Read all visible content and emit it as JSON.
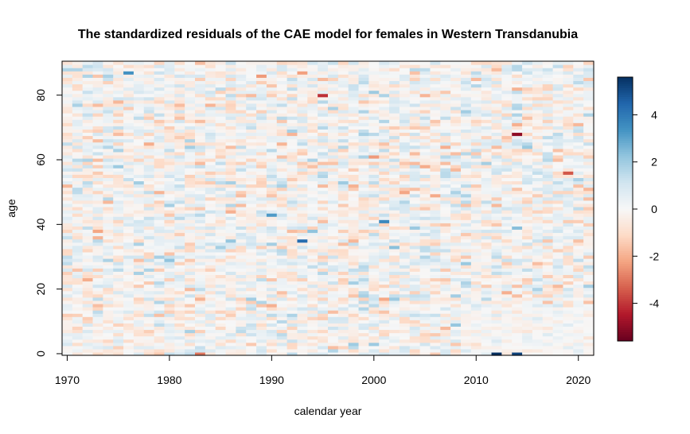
{
  "chart_data": {
    "type": "heatmap",
    "title": "The standardized residuals of the CAE model for females in Western Transdanubia",
    "xlabel": "calendar year",
    "ylabel": "age",
    "x_range": [
      1970,
      2021
    ],
    "y_range": [
      0,
      90
    ],
    "x_ticks": [
      "1970",
      "1980",
      "1990",
      "2000",
      "2010",
      "2020"
    ],
    "y_ticks": [
      "0",
      "20",
      "40",
      "60",
      "80"
    ],
    "colorbar": {
      "range": [
        -5.6,
        5.6
      ],
      "ticks": [
        "-4",
        "-2",
        "0",
        "2",
        "4"
      ],
      "palette": [
        "#67001f",
        "#b2182b",
        "#d6604d",
        "#f4a582",
        "#fddbc7",
        "#f7f7f7",
        "#d1e5f0",
        "#92c5de",
        "#4393c3",
        "#2166ac",
        "#053061"
      ]
    },
    "notable_cells": [
      {
        "year": 2012,
        "age": 0,
        "value": 5.6
      },
      {
        "year": 2014,
        "age": 0,
        "value": 5.2
      },
      {
        "year": 1993,
        "age": 35,
        "value": 4.3
      },
      {
        "year": 1995,
        "age": 80,
        "value": -4.1
      },
      {
        "year": 2014,
        "age": 68,
        "value": -5.0
      },
      {
        "year": 2019,
        "age": 56,
        "value": -3.5
      },
      {
        "year": 1983,
        "age": 0,
        "value": -3.0
      },
      {
        "year": 2001,
        "age": 41,
        "value": 3.6
      },
      {
        "year": 1990,
        "age": 43,
        "value": 3.2
      },
      {
        "year": 1976,
        "age": 87,
        "value": 3.4
      }
    ],
    "note_residuals": "Standardized residuals are drawn cell by cell for every calendar year 1970-2021 and age 0-90."
  }
}
